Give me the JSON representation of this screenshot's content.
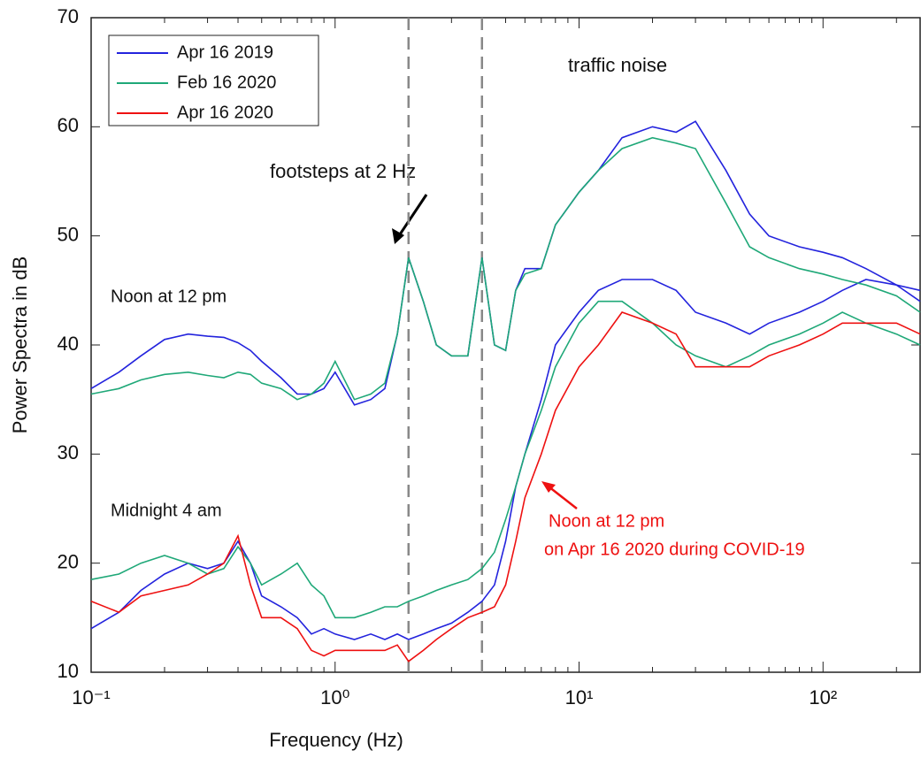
{
  "chart_data": {
    "type": "line",
    "xlabel": "Frequency (Hz)",
    "ylabel": "Power Spectra in dB",
    "log_x": true,
    "xlim": [
      0.1,
      250
    ],
    "ylim": [
      10,
      70
    ],
    "xticks": [
      {
        "value": 0.1,
        "label": "10⁻¹"
      },
      {
        "value": 1,
        "label": "10⁰"
      },
      {
        "value": 10,
        "label": "10¹"
      },
      {
        "value": 100,
        "label": "10²"
      }
    ],
    "yticks": [
      10,
      20,
      30,
      40,
      50,
      60,
      70
    ],
    "legend": "upper left",
    "vlines": [
      2,
      4
    ],
    "x": [
      0.1,
      0.13,
      0.16,
      0.2,
      0.25,
      0.3,
      0.35,
      0.4,
      0.45,
      0.5,
      0.6,
      0.7,
      0.8,
      0.9,
      1.0,
      1.2,
      1.4,
      1.6,
      1.8,
      2.0,
      2.3,
      2.6,
      3.0,
      3.5,
      4.0,
      4.5,
      5,
      5.5,
      6,
      7,
      8,
      10,
      12,
      15,
      20,
      25,
      30,
      40,
      50,
      60,
      80,
      100,
      120,
      150,
      200,
      250
    ],
    "series": [
      {
        "name": "Apr 16 2019",
        "color": "#2323dd",
        "curves": [
          [
            36,
            37.5,
            39,
            40.5,
            41,
            40.8,
            40.7,
            40.2,
            39.5,
            38.5,
            37,
            35.5,
            35.5,
            36,
            37.5,
            34.5,
            35,
            36,
            41,
            48,
            44,
            40,
            39,
            39,
            48,
            40,
            39.5,
            45,
            47,
            47,
            51,
            54,
            56,
            59,
            60,
            59.5,
            60.5,
            56,
            52,
            50,
            49,
            48.5,
            48,
            47,
            45.5,
            44
          ],
          [
            14,
            15.5,
            17.5,
            19,
            20,
            19.5,
            20,
            22,
            20,
            17,
            16,
            15,
            13.5,
            14,
            13.5,
            13,
            13.5,
            13,
            13.5,
            13,
            13.5,
            14,
            14.5,
            15.5,
            16.5,
            18,
            22,
            27,
            30,
            35,
            40,
            43,
            45,
            46,
            46,
            45,
            43,
            42,
            41,
            42,
            43,
            44,
            45,
            46,
            45.5,
            45
          ]
        ]
      },
      {
        "name": "Feb 16 2020",
        "color": "#1fa878",
        "curves": [
          [
            35.5,
            36,
            36.8,
            37.3,
            37.5,
            37.2,
            37,
            37.5,
            37.3,
            36.5,
            36,
            35,
            35.5,
            36.5,
            38.5,
            35,
            35.5,
            36.5,
            41,
            48,
            44,
            40,
            39,
            39,
            48,
            40,
            39.5,
            45,
            46.5,
            47,
            51,
            54,
            56,
            58,
            59,
            58.5,
            58,
            53,
            49,
            48,
            47,
            46.5,
            46,
            45.5,
            44.5,
            43
          ],
          [
            18.5,
            19,
            20,
            20.7,
            20,
            19,
            19.5,
            21.5,
            20,
            18,
            19,
            20,
            18,
            17,
            15,
            15,
            15.5,
            16,
            16,
            16.5,
            17,
            17.5,
            18,
            18.5,
            19.5,
            21,
            24,
            27,
            30,
            34,
            38,
            42,
            44,
            44,
            42,
            40,
            39,
            38,
            39,
            40,
            41,
            42,
            43,
            42,
            41,
            40
          ]
        ]
      },
      {
        "name": "Apr 16 2020",
        "color": "#ee1111",
        "curves": [
          [
            16.5,
            15.5,
            17,
            17.5,
            18,
            19,
            20,
            22.5,
            18,
            15,
            15,
            14,
            12,
            11.5,
            12,
            12,
            12,
            12,
            12.5,
            11,
            12,
            13,
            14,
            15,
            15.5,
            16,
            18,
            22,
            26,
            30,
            34,
            38,
            40,
            43,
            42,
            41,
            38,
            38,
            38,
            39,
            40,
            41,
            42,
            42,
            42,
            41
          ]
        ]
      }
    ],
    "annotations": [
      "traffic noise",
      "footsteps at 2 Hz",
      "Noon at 12 pm",
      "Midnight 4 am",
      "Noon at 12 pm",
      "on Apr 16 2020 during COVID-19"
    ]
  }
}
